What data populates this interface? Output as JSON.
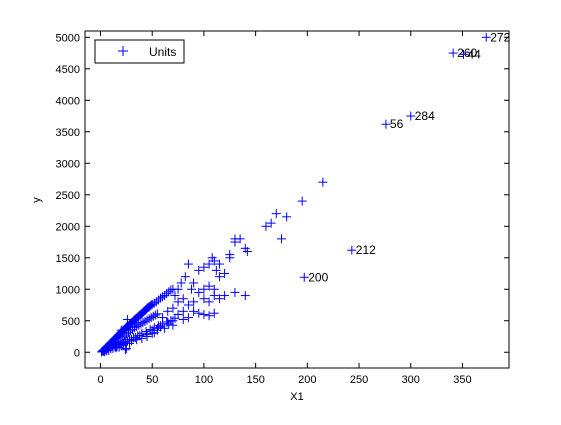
{
  "chart_data": {
    "type": "scatter",
    "xlabel": "X1",
    "ylabel": "y",
    "xlim": [
      -15,
      395
    ],
    "ylim": [
      -250,
      5100
    ],
    "xticks": [
      0,
      50,
      100,
      150,
      200,
      250,
      300,
      350
    ],
    "yticks": [
      0,
      500,
      1000,
      1500,
      2000,
      2500,
      3000,
      3500,
      4000,
      4500,
      5000
    ],
    "grid": false,
    "legend_position": "top-left",
    "marker": "+",
    "color": "#0000ff",
    "series": [
      {
        "name": "Units",
        "points": [
          [
            1,
            5
          ],
          [
            2,
            20
          ],
          [
            3,
            35
          ],
          [
            4,
            50
          ],
          [
            5,
            70
          ],
          [
            6,
            80
          ],
          [
            7,
            100
          ],
          [
            8,
            115
          ],
          [
            9,
            130
          ],
          [
            10,
            150
          ],
          [
            11,
            165
          ],
          [
            12,
            180
          ],
          [
            13,
            200
          ],
          [
            14,
            215
          ],
          [
            15,
            230
          ],
          [
            16,
            250
          ],
          [
            17,
            265
          ],
          [
            18,
            280
          ],
          [
            19,
            300
          ],
          [
            20,
            315
          ],
          [
            21,
            330
          ],
          [
            22,
            350
          ],
          [
            23,
            365
          ],
          [
            24,
            380
          ],
          [
            25,
            400
          ],
          [
            26,
            410
          ],
          [
            27,
            420
          ],
          [
            28,
            440
          ],
          [
            29,
            455
          ],
          [
            30,
            470
          ],
          [
            31,
            480
          ],
          [
            32,
            500
          ],
          [
            33,
            515
          ],
          [
            34,
            530
          ],
          [
            35,
            545
          ],
          [
            36,
            560
          ],
          [
            37,
            575
          ],
          [
            38,
            590
          ],
          [
            39,
            600
          ],
          [
            40,
            610
          ],
          [
            41,
            630
          ],
          [
            42,
            650
          ],
          [
            43,
            665
          ],
          [
            44,
            680
          ],
          [
            45,
            700
          ],
          [
            46,
            710
          ],
          [
            47,
            720
          ],
          [
            48,
            735
          ],
          [
            49,
            750
          ],
          [
            50,
            760
          ],
          [
            52,
            780
          ],
          [
            54,
            800
          ],
          [
            56,
            830
          ],
          [
            58,
            860
          ],
          [
            60,
            880
          ],
          [
            62,
            900
          ],
          [
            64,
            930
          ],
          [
            66,
            960
          ],
          [
            68,
            990
          ],
          [
            70,
            1000
          ],
          [
            3,
            15
          ],
          [
            5,
            40
          ],
          [
            7,
            60
          ],
          [
            9,
            90
          ],
          [
            11,
            110
          ],
          [
            13,
            130
          ],
          [
            15,
            160
          ],
          [
            17,
            180
          ],
          [
            19,
            210
          ],
          [
            21,
            240
          ],
          [
            23,
            260
          ],
          [
            25,
            290
          ],
          [
            27,
            310
          ],
          [
            29,
            340
          ],
          [
            31,
            360
          ],
          [
            33,
            390
          ],
          [
            35,
            410
          ],
          [
            37,
            430
          ],
          [
            39,
            450
          ],
          [
            41,
            470
          ],
          [
            43,
            490
          ],
          [
            45,
            510
          ],
          [
            47,
            530
          ],
          [
            49,
            550
          ],
          [
            51,
            570
          ],
          [
            53,
            590
          ],
          [
            55,
            610
          ],
          [
            4,
            10
          ],
          [
            8,
            30
          ],
          [
            12,
            60
          ],
          [
            16,
            90
          ],
          [
            20,
            120
          ],
          [
            24,
            160
          ],
          [
            28,
            200
          ],
          [
            32,
            230
          ],
          [
            36,
            260
          ],
          [
            40,
            300
          ],
          [
            44,
            330
          ],
          [
            48,
            360
          ],
          [
            52,
            390
          ],
          [
            56,
            420
          ],
          [
            60,
            450
          ],
          [
            64,
            480
          ],
          [
            68,
            500
          ],
          [
            72,
            540
          ],
          [
            6,
            25
          ],
          [
            10,
            55
          ],
          [
            14,
            85
          ],
          [
            18,
            115
          ],
          [
            22,
            145
          ],
          [
            26,
            175
          ],
          [
            30,
            205
          ],
          [
            34,
            235
          ],
          [
            38,
            265
          ],
          [
            15,
            70
          ],
          [
            18,
            80
          ],
          [
            20,
            110
          ],
          [
            22,
            130
          ],
          [
            25,
            60
          ],
          [
            28,
            140
          ],
          [
            30,
            180
          ],
          [
            35,
            200
          ],
          [
            40,
            220
          ],
          [
            45,
            280
          ],
          [
            50,
            350
          ],
          [
            55,
            380
          ],
          [
            52,
            310
          ],
          [
            24,
            40
          ],
          [
            20,
            350
          ],
          [
            26,
            520
          ],
          [
            34,
            470
          ],
          [
            72,
            900
          ],
          [
            75,
            1000
          ],
          [
            78,
            1100
          ],
          [
            82,
            1200
          ],
          [
            85,
            1400
          ],
          [
            88,
            1000
          ],
          [
            90,
            1100
          ],
          [
            95,
            1300
          ],
          [
            100,
            1350
          ],
          [
            105,
            1400
          ],
          [
            110,
            1450
          ],
          [
            112,
            1300
          ],
          [
            115,
            1400
          ],
          [
            100,
            1000
          ],
          [
            105,
            1050
          ],
          [
            110,
            1000
          ],
          [
            108,
            1500
          ],
          [
            125,
            1550
          ],
          [
            130,
            1750
          ],
          [
            135,
            1800
          ],
          [
            140,
            1650
          ],
          [
            142,
            1600
          ],
          [
            160,
            2000
          ],
          [
            165,
            2050
          ],
          [
            170,
            2200
          ],
          [
            180,
            2150
          ],
          [
            195,
            2400
          ],
          [
            215,
            2700
          ],
          [
            175,
            1800
          ],
          [
            130,
            1800
          ],
          [
            120,
            1250
          ],
          [
            115,
            1200
          ],
          [
            80,
            650
          ],
          [
            85,
            750
          ],
          [
            90,
            800
          ],
          [
            95,
            950
          ],
          [
            100,
            850
          ],
          [
            105,
            800
          ],
          [
            110,
            900
          ],
          [
            115,
            850
          ],
          [
            120,
            900
          ],
          [
            130,
            950
          ],
          [
            140,
            900
          ],
          [
            90,
            650
          ],
          [
            95,
            620
          ],
          [
            100,
            600
          ],
          [
            105,
            580
          ],
          [
            110,
            620
          ],
          [
            85,
            550
          ],
          [
            80,
            520
          ],
          [
            75,
            600
          ],
          [
            70,
            500
          ],
          [
            65,
            480
          ],
          [
            60,
            450
          ],
          [
            58,
            400
          ],
          [
            55,
            350
          ],
          [
            60,
            550
          ],
          [
            65,
            650
          ],
          [
            70,
            700
          ],
          [
            75,
            800
          ],
          [
            80,
            850
          ],
          [
            125,
            1500
          ],
          [
            45,
            250
          ],
          [
            50,
            300
          ],
          [
            58,
            420
          ],
          [
            62,
            380
          ],
          [
            66,
            450
          ],
          [
            70,
            430
          ]
        ]
      }
    ],
    "labeled_points": [
      {
        "label": "272",
        "x": 373,
        "y": 5000
      },
      {
        "label": "260",
        "x": 341,
        "y": 4750
      },
      {
        "label": "44",
        "x": 351,
        "y": 4730
      },
      {
        "label": "284",
        "x": 300,
        "y": 3750
      },
      {
        "label": "56",
        "x": 276,
        "y": 3620
      },
      {
        "label": "212",
        "x": 243,
        "y": 1620
      },
      {
        "label": "200",
        "x": 197,
        "y": 1190
      }
    ]
  }
}
